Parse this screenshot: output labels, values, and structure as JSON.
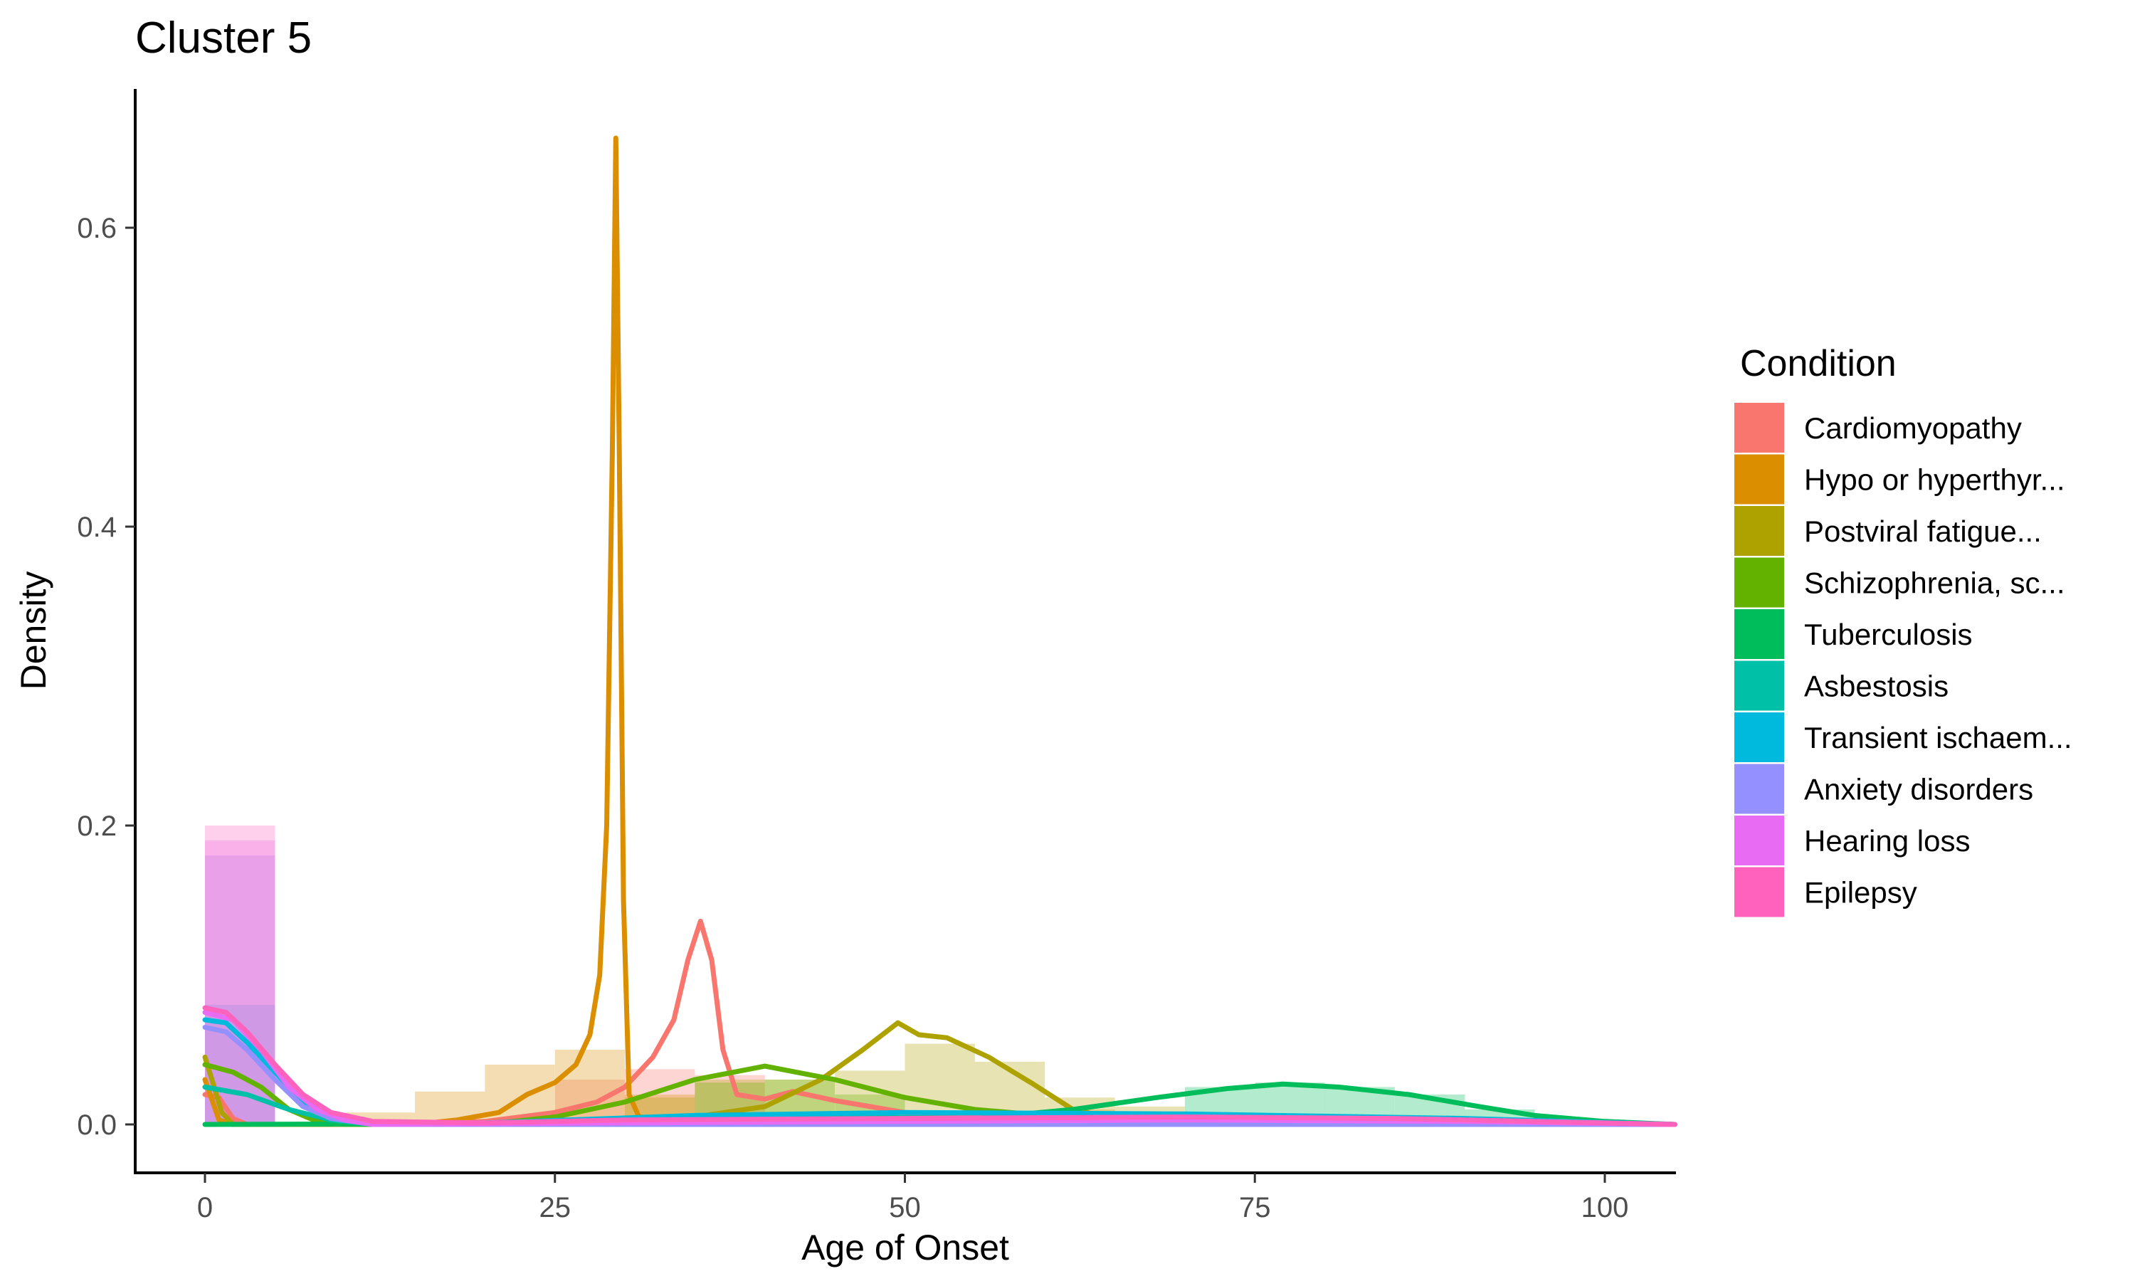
{
  "chart_data": {
    "type": "area",
    "title": "Cluster 5",
    "xlabel": "Age of Onset",
    "ylabel": "Density",
    "xlim": [
      -5,
      105
    ],
    "ylim": [
      -0.033,
      0.69
    ],
    "xticks": [
      "0",
      "25",
      "50",
      "75",
      "100"
    ],
    "yticks": [
      "0.0",
      "0.2",
      "0.4",
      "0.6"
    ],
    "grid": false,
    "legend": {
      "title": "Condition",
      "position": "right"
    },
    "series": [
      {
        "name": "Cardiomyopathy",
        "color": "#F8766D",
        "histogram": [
          [
            25,
            30,
            0.03
          ],
          [
            30,
            35,
            0.037
          ],
          [
            35,
            40,
            0.033
          ]
        ],
        "density": [
          [
            0,
            0.02
          ],
          [
            1,
            0.018
          ],
          [
            2,
            0.004
          ],
          [
            3,
            0
          ],
          [
            15,
            0
          ],
          [
            20,
            0.002
          ],
          [
            25,
            0.008
          ],
          [
            28,
            0.015
          ],
          [
            30,
            0.025
          ],
          [
            32,
            0.045
          ],
          [
            33.5,
            0.07
          ],
          [
            34.5,
            0.11
          ],
          [
            35.4,
            0.136
          ],
          [
            36.2,
            0.11
          ],
          [
            37,
            0.05
          ],
          [
            38,
            0.02
          ],
          [
            40,
            0.017
          ],
          [
            42,
            0.022
          ],
          [
            45,
            0.016
          ],
          [
            50,
            0.008
          ],
          [
            60,
            0.003
          ],
          [
            80,
            0.001
          ],
          [
            105,
            0
          ]
        ]
      },
      {
        "name": "Hypo or hyperthyr...",
        "color": "#DB8E00",
        "histogram": [
          [
            10,
            15,
            0.008
          ],
          [
            15,
            20,
            0.022
          ],
          [
            20,
            25,
            0.04
          ],
          [
            25,
            30,
            0.05
          ],
          [
            30,
            35,
            0.02
          ],
          [
            60,
            65,
            0.01
          ]
        ],
        "density": [
          [
            0,
            0.03
          ],
          [
            1,
            0.003
          ],
          [
            2,
            0
          ],
          [
            15,
            0
          ],
          [
            18,
            0.003
          ],
          [
            21,
            0.008
          ],
          [
            23,
            0.02
          ],
          [
            25,
            0.028
          ],
          [
            26.5,
            0.04
          ],
          [
            27.5,
            0.06
          ],
          [
            28.2,
            0.1
          ],
          [
            28.7,
            0.2
          ],
          [
            29.1,
            0.45
          ],
          [
            29.35,
            0.66
          ],
          [
            29.6,
            0.45
          ],
          [
            29.9,
            0.15
          ],
          [
            30.3,
            0.02
          ],
          [
            31,
            0.005
          ],
          [
            35,
            0.003
          ],
          [
            45,
            0.004
          ],
          [
            60,
            0.004
          ],
          [
            75,
            0.002
          ],
          [
            105,
            0
          ]
        ]
      },
      {
        "name": "Postviral fatigue...",
        "color": "#AEA200",
        "histogram": [
          [
            30,
            35,
            0.018
          ],
          [
            35,
            40,
            0.03
          ],
          [
            40,
            45,
            0.03
          ],
          [
            45,
            50,
            0.036
          ],
          [
            50,
            55,
            0.054
          ],
          [
            55,
            60,
            0.042
          ],
          [
            60,
            65,
            0.018
          ],
          [
            65,
            70,
            0.012
          ]
        ],
        "density": [
          [
            0,
            0.045
          ],
          [
            0.5,
            0.03
          ],
          [
            1.2,
            0.008
          ],
          [
            2,
            0
          ],
          [
            30,
            0
          ],
          [
            35,
            0.005
          ],
          [
            40,
            0.012
          ],
          [
            44,
            0.03
          ],
          [
            47,
            0.05
          ],
          [
            49.5,
            0.068
          ],
          [
            51,
            0.06
          ],
          [
            53,
            0.058
          ],
          [
            56,
            0.045
          ],
          [
            59,
            0.028
          ],
          [
            62,
            0.01
          ],
          [
            65,
            0.004
          ],
          [
            75,
            0.001
          ],
          [
            105,
            0
          ]
        ]
      },
      {
        "name": "Schizophrenia, sc...",
        "color": "#64B200",
        "histogram": [
          [
            35,
            40,
            0.028
          ],
          [
            40,
            45,
            0.03
          ],
          [
            45,
            50,
            0.02
          ]
        ],
        "density": [
          [
            0,
            0.04
          ],
          [
            2,
            0.035
          ],
          [
            4,
            0.025
          ],
          [
            6,
            0.01
          ],
          [
            8,
            0.002
          ],
          [
            10,
            0
          ],
          [
            20,
            0
          ],
          [
            25,
            0.005
          ],
          [
            30,
            0.015
          ],
          [
            35,
            0.03
          ],
          [
            40,
            0.039
          ],
          [
            45,
            0.03
          ],
          [
            50,
            0.018
          ],
          [
            55,
            0.01
          ],
          [
            60,
            0.006
          ],
          [
            70,
            0.004
          ],
          [
            80,
            0.003
          ],
          [
            90,
            0.002
          ],
          [
            105,
            0
          ]
        ]
      },
      {
        "name": "Tuberculosis",
        "color": "#00BD5C",
        "histogram": [
          [
            70,
            75,
            0.025
          ],
          [
            75,
            80,
            0.028
          ],
          [
            80,
            85,
            0.025
          ],
          [
            85,
            90,
            0.02
          ],
          [
            90,
            95,
            0.01
          ]
        ],
        "density": [
          [
            0,
            0
          ],
          [
            40,
            0.001
          ],
          [
            55,
            0.004
          ],
          [
            62,
            0.01
          ],
          [
            68,
            0.018
          ],
          [
            73,
            0.024
          ],
          [
            77,
            0.027
          ],
          [
            81,
            0.025
          ],
          [
            86,
            0.02
          ],
          [
            91,
            0.012
          ],
          [
            95,
            0.006
          ],
          [
            100,
            0.002
          ],
          [
            105,
            0
          ]
        ]
      },
      {
        "name": "Asbestosis",
        "color": "#00C1A7",
        "histogram": [],
        "density": [
          [
            0,
            0.025
          ],
          [
            3,
            0.02
          ],
          [
            6,
            0.01
          ],
          [
            9,
            0.003
          ],
          [
            12,
            0
          ],
          [
            30,
            0
          ],
          [
            35,
            0.004
          ],
          [
            40,
            0.005
          ],
          [
            60,
            0.004
          ],
          [
            80,
            0.002
          ],
          [
            105,
            0
          ]
        ]
      },
      {
        "name": "Transient ischaem...",
        "color": "#00BADE",
        "histogram": [
          [
            0,
            5,
            0.08
          ]
        ],
        "density": [
          [
            0,
            0.07
          ],
          [
            1.5,
            0.068
          ],
          [
            3,
            0.055
          ],
          [
            5,
            0.035
          ],
          [
            7,
            0.015
          ],
          [
            9,
            0.005
          ],
          [
            12,
            0.001
          ],
          [
            20,
            0.001
          ],
          [
            35,
            0.006
          ],
          [
            50,
            0.008
          ],
          [
            70,
            0.007
          ],
          [
            90,
            0.004
          ],
          [
            105,
            0
          ]
        ]
      },
      {
        "name": "Anxiety disorders",
        "color": "#9590FF",
        "histogram": [
          [
            0,
            5,
            0.18
          ]
        ],
        "density": [
          [
            0,
            0.065
          ],
          [
            1.5,
            0.062
          ],
          [
            3,
            0.05
          ],
          [
            5,
            0.03
          ],
          [
            7,
            0.012
          ],
          [
            9,
            0.004
          ],
          [
            12,
            0
          ],
          [
            105,
            0
          ]
        ]
      },
      {
        "name": "Hearing loss",
        "color": "#E76BF3",
        "histogram": [
          [
            0,
            5,
            0.19
          ]
        ],
        "density": [
          [
            0,
            0.075
          ],
          [
            2,
            0.07
          ],
          [
            4,
            0.05
          ],
          [
            6,
            0.025
          ],
          [
            8,
            0.01
          ],
          [
            10,
            0.003
          ],
          [
            12,
            0
          ],
          [
            30,
            0.001
          ],
          [
            50,
            0.002
          ],
          [
            70,
            0.003
          ],
          [
            90,
            0.002
          ],
          [
            105,
            0
          ]
        ]
      },
      {
        "name": "Epilepsy",
        "color": "#FF62BC",
        "histogram": [
          [
            0,
            5,
            0.2
          ]
        ],
        "density": [
          [
            0,
            0.078
          ],
          [
            1.5,
            0.075
          ],
          [
            3,
            0.062
          ],
          [
            5,
            0.04
          ],
          [
            7,
            0.02
          ],
          [
            9,
            0.008
          ],
          [
            12,
            0.002
          ],
          [
            20,
            0.001
          ],
          [
            30,
            0.003
          ],
          [
            50,
            0.004
          ],
          [
            70,
            0.005
          ],
          [
            85,
            0.004
          ],
          [
            100,
            0.001
          ],
          [
            105,
            0
          ]
        ]
      }
    ]
  }
}
